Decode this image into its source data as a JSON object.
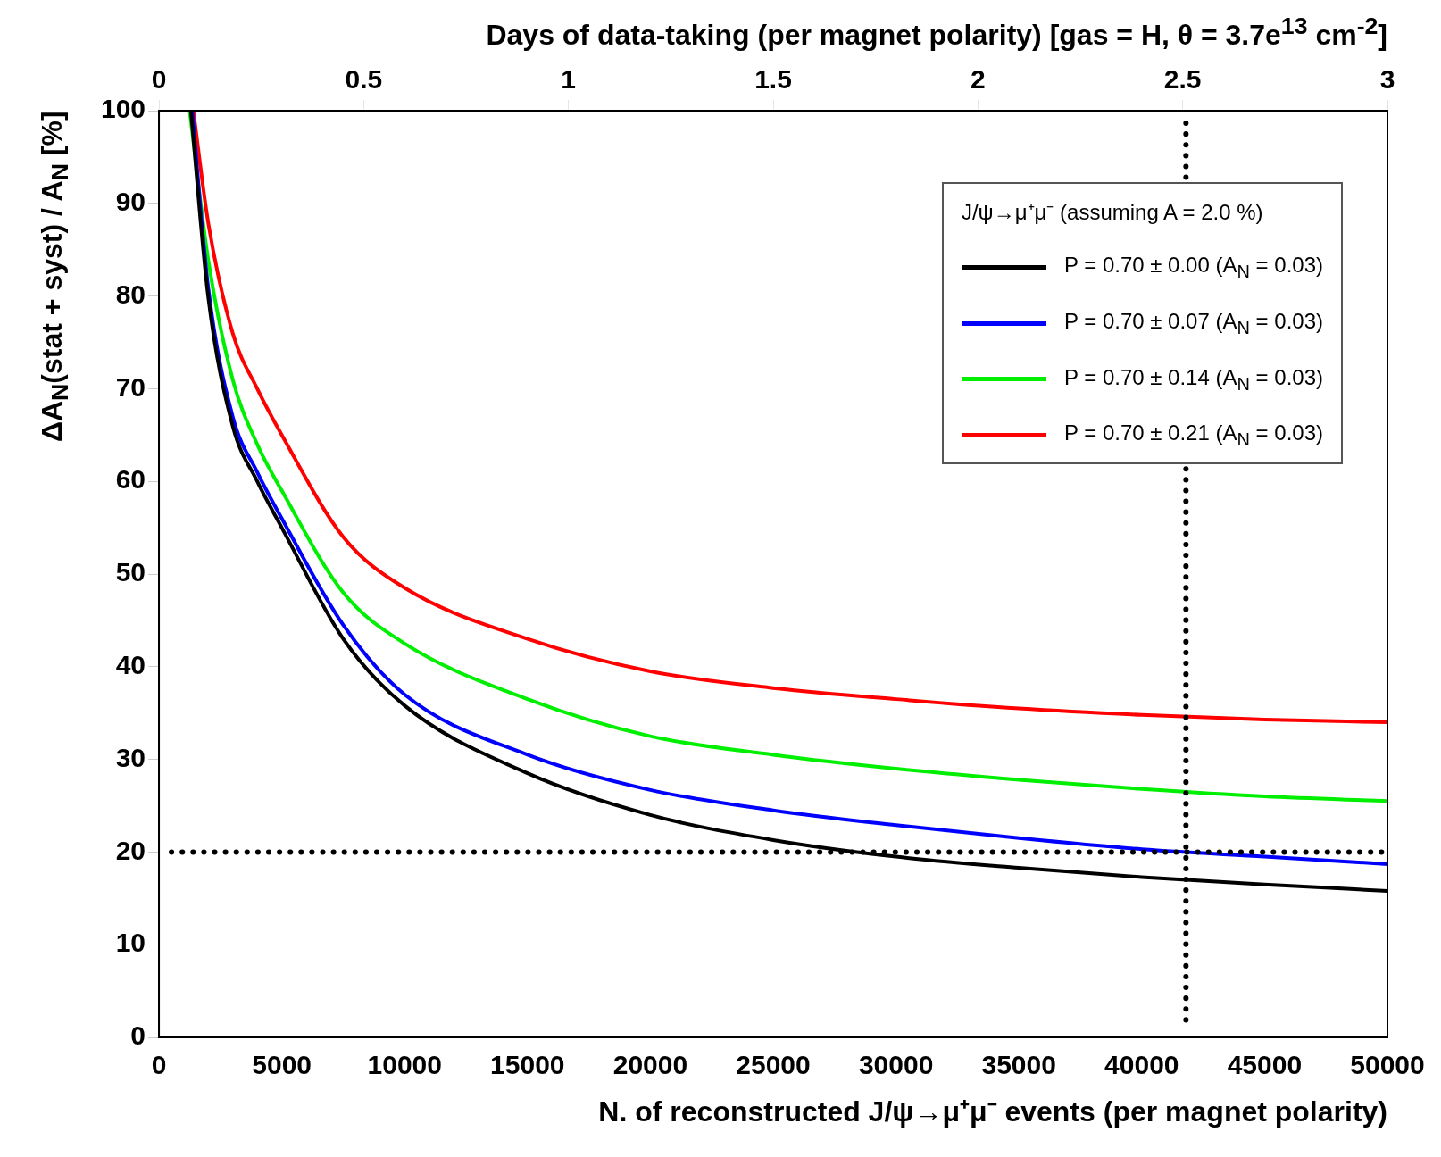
{
  "chart_data": {
    "type": "line",
    "xlabel": "N. of reconstructed J/ψ→μ⁺μ⁻ events (per magnet polarity)",
    "ylabel": "ΔA$_{N}$(stat + syst) / A$_{N}$ [%]",
    "x2label": "Days of data-taking (per magnet polarity) [gas = H,  θ = 3.7e$^{13}$ cm$^{-2}$]",
    "legend_title": "J/ψ→μ⁺μ⁻ (assuming A = 2.0 %)",
    "series": [
      {
        "name": "P = 0.70 ± 0.00 (A$_{N}$ = 0.03)",
        "color": "#000000",
        "x": [
          1300,
          2000,
          3000,
          4000,
          5000,
          7500,
          10000,
          15000,
          20000,
          25000,
          30000,
          35000,
          40000,
          45000,
          50000
        ],
        "values": [
          100,
          80,
          66,
          60,
          55,
          43,
          35.8,
          28.5,
          24,
          21.3,
          19.5,
          18.3,
          17.3,
          16.5,
          15.8
        ]
      },
      {
        "name": "P = 0.70 ± 0.07 (A$_{N}$ = 0.03)",
        "color": "#0000ff",
        "x": [
          1350,
          2000,
          3000,
          4000,
          5000,
          7500,
          10000,
          15000,
          20000,
          25000,
          30000,
          35000,
          40000,
          45000,
          50000
        ],
        "values": [
          100,
          81,
          67,
          61,
          56,
          44.5,
          37,
          30.5,
          26.7,
          24.5,
          22.9,
          21.5,
          20.3,
          19.5,
          18.7
        ]
      },
      {
        "name": "P = 0.70 ± 0.14 (A$_{N}$ = 0.03)",
        "color": "#00ee00",
        "x": [
          1250,
          2000,
          3000,
          4000,
          5000,
          7500,
          10000,
          15000,
          20000,
          25000,
          30000,
          35000,
          40000,
          45000,
          50000
        ],
        "values": [
          100,
          84,
          71,
          64,
          59,
          48,
          42.5,
          36.5,
          32.5,
          30.5,
          29,
          27.8,
          26.8,
          26,
          25.5
        ]
      },
      {
        "name": "P = 0.70 ± 0.21 (A$_{N}$ = 0.03)",
        "color": "#ff0000",
        "x": [
          1400,
          2000,
          3000,
          4000,
          5000,
          7500,
          10000,
          15000,
          20000,
          25000,
          30000,
          35000,
          40000,
          45000,
          50000
        ],
        "values": [
          100,
          88,
          76,
          70,
          65,
          54,
          48.5,
          43,
          39.5,
          37.7,
          36.5,
          35.5,
          34.8,
          34.3,
          34
        ]
      }
    ],
    "xlim": [
      0,
      50000
    ],
    "xticks": [
      0,
      5000,
      10000,
      15000,
      20000,
      25000,
      30000,
      35000,
      40000,
      45000,
      50000
    ],
    "x2lim": [
      0,
      3
    ],
    "x2ticks": [
      0,
      0.5,
      1,
      1.5,
      2,
      2.5,
      3
    ],
    "ylim": [
      0,
      100
    ],
    "yticks": [
      0,
      10,
      20,
      30,
      40,
      50,
      60,
      70,
      80,
      90,
      100
    ],
    "ref_lines": [
      {
        "axis": "y",
        "value": 20,
        "color": "#000000",
        "line_style": "dotted"
      },
      {
        "axis": "x",
        "value": 41800,
        "color": "#000000",
        "line_style": "dotted"
      }
    ],
    "grid": false,
    "legend": "top right",
    "marker": "none",
    "line_style": "solid"
  }
}
